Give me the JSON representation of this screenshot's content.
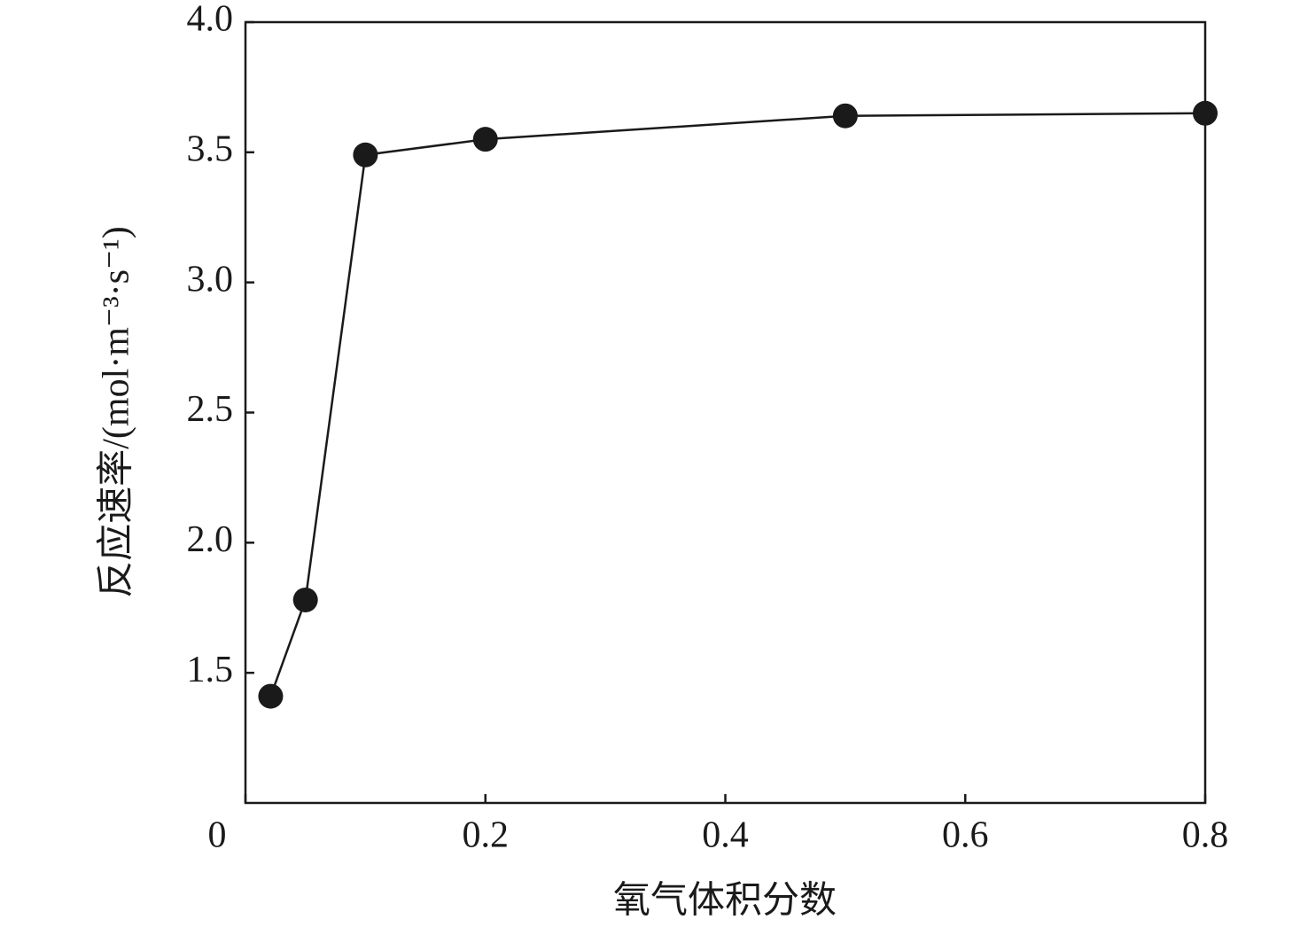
{
  "chart_data": {
    "type": "line",
    "xlabel": "氧气体积分数",
    "ylabel": "反应速率/(mol·m⁻³·s⁻¹)",
    "x": [
      0.021,
      0.05,
      0.1,
      0.2,
      0.5,
      0.8
    ],
    "series": [
      {
        "color": "#1a1a1a",
        "values": [
          1.41,
          1.78,
          3.49,
          3.55,
          3.64,
          3.65
        ]
      }
    ],
    "xlim": [
      0,
      0.8
    ],
    "xticks": [
      0,
      0.2,
      0.4,
      0.6,
      0.8
    ],
    "ylim": [
      1.0,
      4.0
    ],
    "yticks": [
      1.5,
      {
        "value": 2,
        "label": "2.0"
      },
      2.5,
      {
        "value": 3,
        "label": "3.0"
      },
      3.5,
      {
        "value": 4,
        "label": "4.0"
      }
    ],
    "grid": false
  }
}
